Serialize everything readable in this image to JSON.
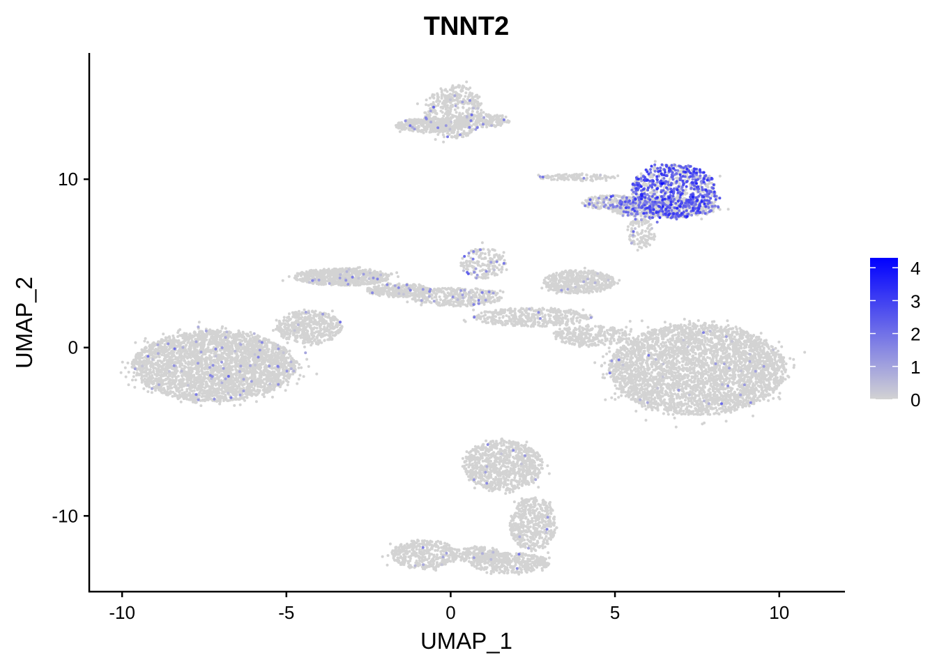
{
  "chart_data": {
    "type": "scatter",
    "title": "TNNT2",
    "xlabel": "UMAP_1",
    "ylabel": "UMAP_2",
    "xlim": [
      -11,
      12
    ],
    "ylim": [
      -14.5,
      17.5
    ],
    "x_ticks": [
      -10,
      -5,
      0,
      5,
      10
    ],
    "x_tick_labels": [
      "-10",
      "-5",
      "0",
      "5",
      "10"
    ],
    "y_ticks": [
      -10,
      0,
      10
    ],
    "y_tick_labels": [
      "-10",
      "0",
      "10"
    ],
    "grid": false,
    "legend": {
      "placement": "right",
      "type": "colorbar",
      "min": 0,
      "max": 4.3,
      "ticks": [
        0,
        1,
        2,
        3,
        4
      ],
      "tick_labels": [
        "0",
        "1",
        "2",
        "3",
        "4"
      ],
      "low_color": "#d3d3d3",
      "high_color": "#0000ff"
    },
    "clusters": [
      {
        "cx": -7.2,
        "cy": -1.1,
        "rx": 2.5,
        "ry": 2.1,
        "n": 3200,
        "frac_expr": 0.02,
        "expr_mean": 0.9
      },
      {
        "cx": -4.3,
        "cy": 1.2,
        "rx": 1.0,
        "ry": 1.0,
        "n": 500,
        "frac_expr": 0.01,
        "expr_mean": 0.8
      },
      {
        "cx": -3.3,
        "cy": 4.2,
        "rx": 1.5,
        "ry": 0.5,
        "n": 700,
        "frac_expr": 0.03,
        "expr_mean": 0.9
      },
      {
        "cx": -1.6,
        "cy": 3.4,
        "rx": 1.0,
        "ry": 0.4,
        "n": 300,
        "frac_expr": 0.04,
        "expr_mean": 1.0
      },
      {
        "cx": 0.2,
        "cy": 3.0,
        "rx": 1.4,
        "ry": 0.55,
        "n": 350,
        "frac_expr": 0.04,
        "expr_mean": 1.0
      },
      {
        "cx": 2.5,
        "cy": 1.8,
        "rx": 1.8,
        "ry": 0.55,
        "n": 420,
        "frac_expr": 0.01,
        "expr_mean": 0.9
      },
      {
        "cx": 4.3,
        "cy": 0.7,
        "rx": 1.2,
        "ry": 0.6,
        "n": 300,
        "frac_expr": 0.01,
        "expr_mean": 0.9
      },
      {
        "cx": 1.0,
        "cy": 5.0,
        "rx": 0.7,
        "ry": 0.9,
        "n": 180,
        "frac_expr": 0.1,
        "expr_mean": 1.2
      },
      {
        "cx": 7.5,
        "cy": -1.3,
        "rx": 2.7,
        "ry": 2.7,
        "n": 3600,
        "frac_expr": 0.01,
        "expr_mean": 0.9
      },
      {
        "cx": 3.9,
        "cy": 3.9,
        "rx": 1.1,
        "ry": 0.7,
        "n": 500,
        "frac_expr": 0.02,
        "expr_mean": 0.9
      },
      {
        "cx": 0.1,
        "cy": 14.0,
        "rx": 0.9,
        "ry": 1.6,
        "n": 500,
        "frac_expr": 0.03,
        "expr_mean": 1.0
      },
      {
        "cx": -0.6,
        "cy": 13.2,
        "rx": 1.1,
        "ry": 0.4,
        "n": 300,
        "frac_expr": 0.02,
        "expr_mean": 1.0
      },
      {
        "cx": 1.0,
        "cy": 13.5,
        "rx": 0.8,
        "ry": 0.4,
        "n": 200,
        "frac_expr": 0.02,
        "expr_mean": 1.0
      },
      {
        "cx": 6.8,
        "cy": 9.3,
        "rx": 1.3,
        "ry": 1.6,
        "n": 900,
        "frac_expr": 0.55,
        "expr_mean": 2.3
      },
      {
        "cx": 6.5,
        "cy": 8.3,
        "rx": 1.7,
        "ry": 0.6,
        "n": 500,
        "frac_expr": 0.25,
        "expr_mean": 1.8
      },
      {
        "cx": 5.0,
        "cy": 8.6,
        "rx": 1.0,
        "ry": 0.45,
        "n": 250,
        "frac_expr": 0.2,
        "expr_mean": 1.6
      },
      {
        "cx": 3.8,
        "cy": 10.1,
        "rx": 1.2,
        "ry": 0.2,
        "n": 120,
        "frac_expr": 0.05,
        "expr_mean": 1.2
      },
      {
        "cx": 5.8,
        "cy": 6.8,
        "rx": 0.45,
        "ry": 0.9,
        "n": 120,
        "frac_expr": 0.05,
        "expr_mean": 1.0
      },
      {
        "cx": 1.6,
        "cy": -7.0,
        "rx": 1.2,
        "ry": 1.5,
        "n": 900,
        "frac_expr": 0.01,
        "expr_mean": 0.9
      },
      {
        "cx": 2.5,
        "cy": -10.5,
        "rx": 0.7,
        "ry": 1.6,
        "n": 500,
        "frac_expr": 0.01,
        "expr_mean": 0.9
      },
      {
        "cx": 1.8,
        "cy": -12.8,
        "rx": 1.2,
        "ry": 0.6,
        "n": 400,
        "frac_expr": 0.01,
        "expr_mean": 0.9
      },
      {
        "cx": -0.8,
        "cy": -12.3,
        "rx": 1.0,
        "ry": 0.9,
        "n": 400,
        "frac_expr": 0.02,
        "expr_mean": 0.9
      },
      {
        "cx": 0.8,
        "cy": -12.3,
        "rx": 0.8,
        "ry": 0.45,
        "n": 200,
        "frac_expr": 0.02,
        "expr_mean": 0.9
      }
    ]
  }
}
